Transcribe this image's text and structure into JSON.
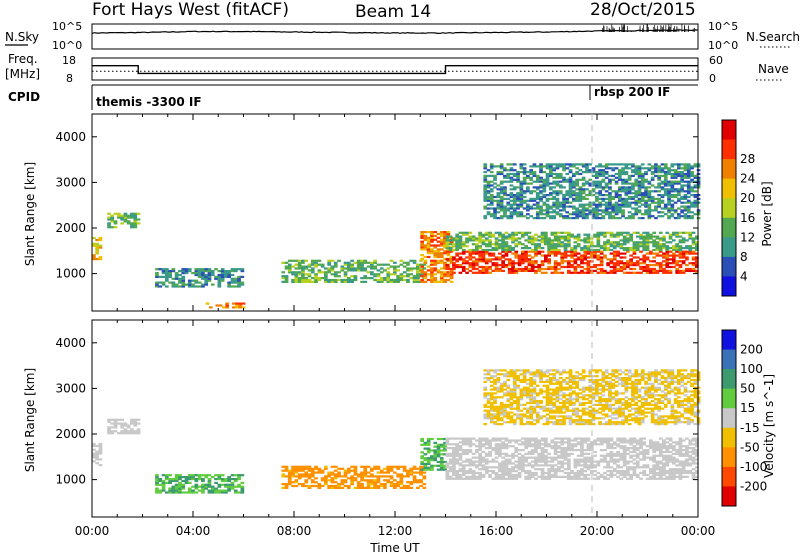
{
  "header": {
    "station": "Fort Hays West (fitACF)",
    "beam": "Beam 14",
    "date": "28/Oct/2015"
  },
  "side_labels": {
    "nsky": "N.Sky",
    "nsearch": "N.Search",
    "freq_1": "Freq.",
    "freq_2": "[MHz]",
    "nave": "Nave",
    "cpid": "CPID"
  },
  "noise_axis": {
    "left_top": "10^5",
    "left_bottom": "10^0",
    "right_top": "10^5",
    "right_bottom": "10^0"
  },
  "freq_axis": {
    "left_top": "18",
    "left_bottom": "8",
    "right_top": "60",
    "right_bottom": "0"
  },
  "cpid_labels": {
    "first": "themis -3300 IF",
    "second": "rbsp 200 IF"
  },
  "colors": {
    "power_scale": [
      "#1010e0",
      "#2a50b8",
      "#3a9a8a",
      "#52a850",
      "#b8d020",
      "#f0c000",
      "#f08000",
      "#ff3000",
      "#e00000"
    ],
    "velocity_scale": [
      "#1010e0",
      "#3a72b8",
      "#3c9a6e",
      "#62cc40",
      "#c8c8c8",
      "#f0c000",
      "#ff9000",
      "#ff4800",
      "#e00000"
    ]
  },
  "chart_data": [
    {
      "type": "line",
      "title": "N.Sky / N.Search",
      "xlabel": "",
      "x": [
        "00:00",
        "02:00",
        "04:00",
        "06:00",
        "08:00",
        "10:00",
        "12:00",
        "14:00",
        "16:00",
        "18:00",
        "20:00",
        "22:00",
        "00:00"
      ],
      "series": [
        {
          "name": "N.Sky",
          "values": [
            3.2,
            3.3,
            3.5,
            3.5,
            3.4,
            3.3,
            3.2,
            3.2,
            3.3,
            3.4,
            3.6,
            3.7,
            3.8
          ]
        }
      ]
    },
    {
      "type": "line",
      "title": "Freq. [MHz] / Nave",
      "x": [
        "00:00",
        "01:50",
        "01:50",
        "14:00",
        "14:00",
        "00:00"
      ],
      "series": [
        {
          "name": "Freq. [MHz]",
          "values": [
            14.5,
            14.5,
            11.0,
            11.0,
            14.5,
            14.5
          ]
        },
        {
          "name": "Nave",
          "values": [
            24,
            24,
            24,
            24,
            24,
            24
          ]
        }
      ],
      "ylim": [
        8,
        18
      ]
    },
    {
      "type": "heatmap",
      "ylabel": "Slant Range [km]",
      "colorbar_label": "Power [dB]",
      "colorbar_ticks": [
        4,
        8,
        12,
        16,
        20,
        24,
        28
      ],
      "yticks": [
        1000,
        2000,
        3000,
        4000
      ],
      "xlim_hours": [
        0,
        24
      ],
      "ylim": [
        180,
        4500
      ],
      "regions": [
        {
          "t0": 0.0,
          "t1": 0.3,
          "r0": 1300,
          "r1": 1800,
          "level": 5
        },
        {
          "t0": 0.6,
          "t1": 1.8,
          "r0": 2000,
          "r1": 2300,
          "level": 3
        },
        {
          "t0": 2.5,
          "t1": 6.0,
          "r0": 700,
          "r1": 1100,
          "level": 2
        },
        {
          "t0": 4.5,
          "t1": 6.0,
          "r0": 240,
          "r1": 340,
          "level": 6
        },
        {
          "t0": 7.5,
          "t1": 13.2,
          "r0": 800,
          "r1": 1300,
          "level": 3
        },
        {
          "t0": 13.0,
          "t1": 14.2,
          "r0": 800,
          "r1": 1900,
          "level": 6
        },
        {
          "t0": 14.0,
          "t1": 24.0,
          "r0": 1000,
          "r1": 1500,
          "level": 7
        },
        {
          "t0": 14.0,
          "t1": 24.0,
          "r0": 1500,
          "r1": 1900,
          "level": 3
        },
        {
          "t0": 15.5,
          "t1": 24.0,
          "r0": 2200,
          "r1": 3400,
          "level": 2
        }
      ]
    },
    {
      "type": "heatmap",
      "ylabel": "Slant Range [km]",
      "xlabel": "Time UT",
      "colorbar_label": "Velocity [m s^-1]",
      "colorbar_ticks": [
        200,
        100,
        50,
        15,
        -15,
        -50,
        -100,
        -200
      ],
      "yticks": [
        1000,
        2000,
        3000,
        4000
      ],
      "xticks": [
        "00:00",
        "04:00",
        "08:00",
        "12:00",
        "16:00",
        "20:00",
        "00:00"
      ],
      "xlim_hours": [
        0,
        24
      ],
      "ylim": [
        180,
        4500
      ],
      "regions": [
        {
          "t0": 0.0,
          "t1": 0.3,
          "r0": 1300,
          "r1": 1800,
          "vel": 0
        },
        {
          "t0": 0.6,
          "t1": 1.8,
          "r0": 2000,
          "r1": 2300,
          "vel": 0
        },
        {
          "t0": 2.5,
          "t1": 6.0,
          "r0": 700,
          "r1": 1100,
          "vel": 30
        },
        {
          "t0": 7.5,
          "t1": 13.2,
          "r0": 800,
          "r1": 1300,
          "vel": -40
        },
        {
          "t0": 13.0,
          "t1": 14.0,
          "r0": 1200,
          "r1": 1900,
          "vel": 30
        },
        {
          "t0": 14.0,
          "t1": 24.0,
          "r0": 1000,
          "r1": 1900,
          "vel": 0
        },
        {
          "t0": 15.5,
          "t1": 24.0,
          "r0": 2200,
          "r1": 3400,
          "vel": -20
        }
      ]
    }
  ]
}
